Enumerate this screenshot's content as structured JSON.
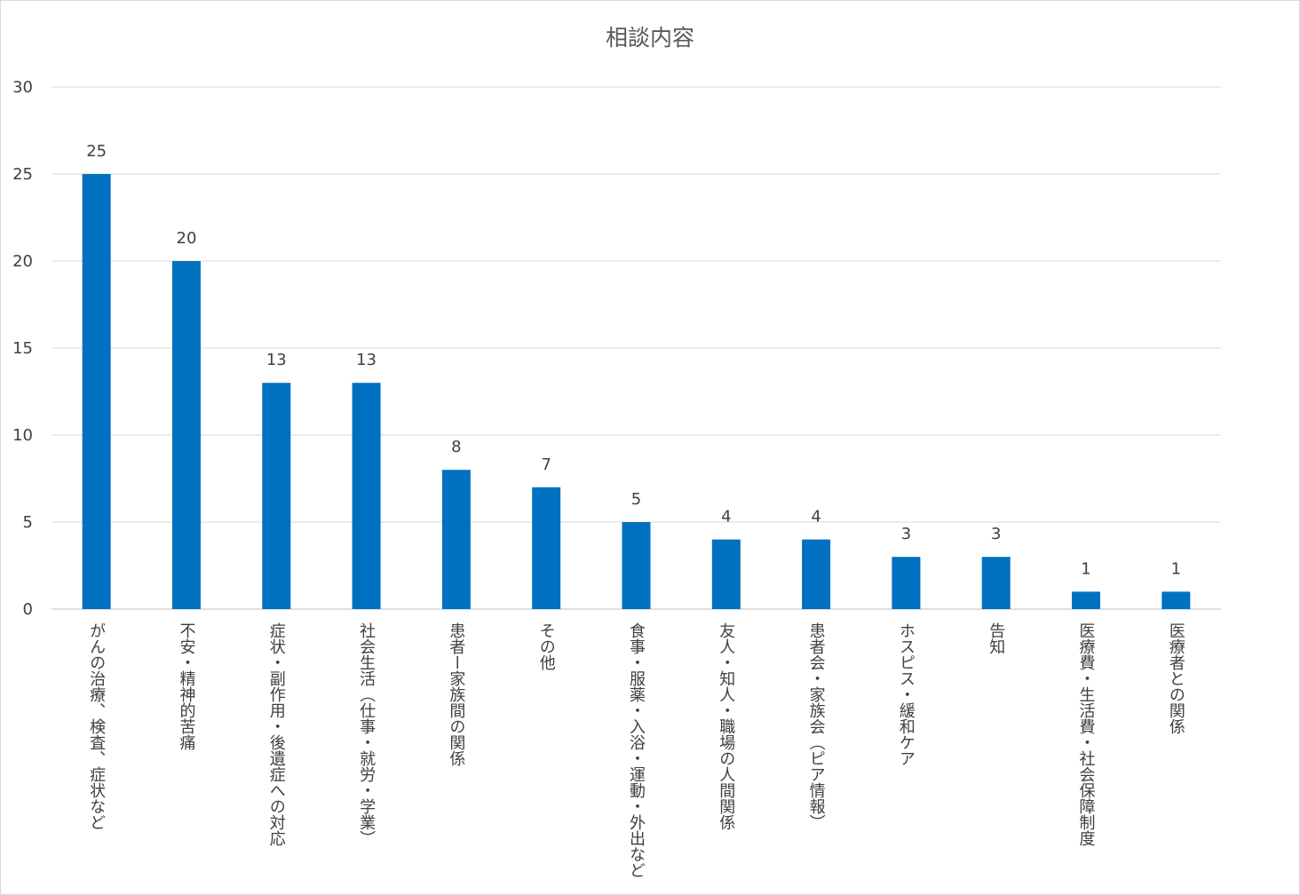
{
  "chart_data": {
    "type": "bar",
    "title": "相談内容",
    "categories": [
      "がんの治療、検査、症状など",
      "不安・精神的苦痛",
      "症状・副作用・後遺症への対応",
      "社会生活（仕事・就労・学業）",
      "患者ー家族間の関係",
      "その他",
      "食事・服薬・入浴・運動・外出など",
      "友人・知人・職場の人間関係",
      "患者会・家族会（ピア情報）",
      "ホスピス・緩和ケア",
      "告知",
      "医療費・生活費・社会保障制度",
      "医療者との関係"
    ],
    "values": [
      25,
      20,
      13,
      13,
      8,
      7,
      5,
      4,
      4,
      3,
      3,
      1,
      1
    ],
    "ylim": [
      0,
      30
    ],
    "yticks": [
      0,
      5,
      10,
      15,
      20,
      25,
      30
    ],
    "grid": true,
    "data_labels": true,
    "bar_color": "#0070C0",
    "xlabel": "",
    "ylabel": ""
  }
}
